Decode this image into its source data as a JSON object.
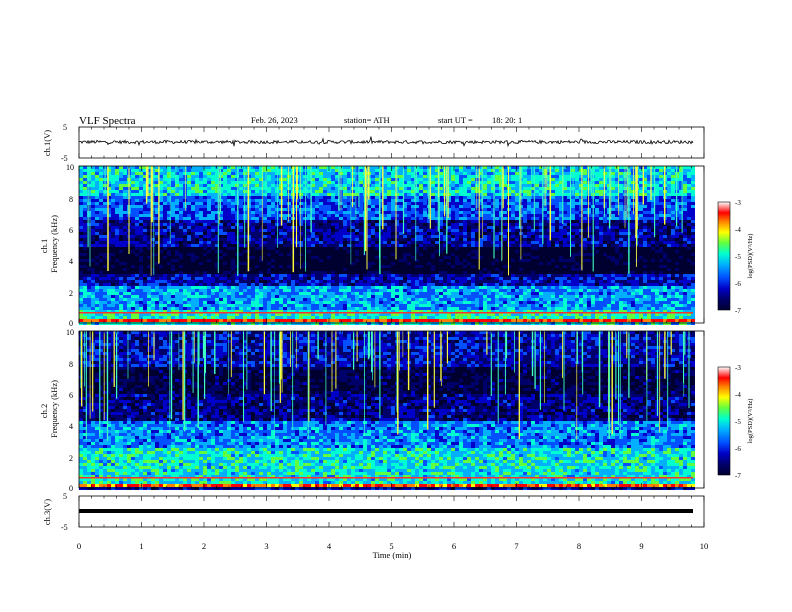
{
  "header": {
    "title": "VLF  Spectra",
    "date": "Feb. 26, 2023",
    "station": "station= ATH",
    "start_label": "start  UT  =",
    "start_time": "18: 20: 1"
  },
  "colors": {
    "spectrogram_scale": [
      "#000030",
      "#00006a",
      "#0000c8",
      "#0050ff",
      "#00b0ff",
      "#00ffd0",
      "#60ff40",
      "#ffff00",
      "#ff8000",
      "#ff0000",
      "#ffffff"
    ],
    "trace": "#000000"
  },
  "colorbar": {
    "label": "log(PSD)(V²/Hz)",
    "ticks": [
      "-3",
      "-4",
      "-5",
      "-6",
      "-7"
    ],
    "range": [
      -7,
      -3
    ]
  },
  "chart_data": [
    {
      "type": "line",
      "panel": "ch1-waveform",
      "ylabel": "ch.1(V)",
      "yticks": [
        "5",
        "-5"
      ],
      "ylim": [
        -5,
        5
      ],
      "xlim": [
        0,
        10
      ],
      "description_values": "noisy waveform centered near 0 V with amplitude about ±1 V and spikes up to ~3 V",
      "baseline": 0
    },
    {
      "type": "heatmap",
      "panel": "ch1-spectrogram",
      "ylabel": "ch.1",
      "ylabel2": "Frequency  (kHz)",
      "yticks": [
        "0",
        "2",
        "4",
        "6",
        "8",
        "10"
      ],
      "ylim": [
        0,
        10
      ],
      "xlim": [
        0,
        9.8
      ],
      "bands": [
        {
          "from": 0.0,
          "to": 0.3,
          "level": -3.2
        },
        {
          "from": 0.3,
          "to": 0.9,
          "level": -4.8
        },
        {
          "from": 0.9,
          "to": 2.4,
          "level": -5.3
        },
        {
          "from": 2.4,
          "to": 3.2,
          "level": -6.1
        },
        {
          "from": 3.2,
          "to": 4.8,
          "level": -6.9
        },
        {
          "from": 4.8,
          "to": 6.5,
          "level": -6.2
        },
        {
          "from": 6.5,
          "to": 8.0,
          "level": -5.6
        },
        {
          "from": 8.0,
          "to": 10.0,
          "level": -5.0
        }
      ]
    },
    {
      "type": "heatmap",
      "panel": "ch2-spectrogram",
      "ylabel": "ch.2",
      "ylabel2": "Frequency  (kHz)",
      "yticks": [
        "0",
        "2",
        "4",
        "6",
        "8",
        "10"
      ],
      "ylim": [
        0,
        10
      ],
      "xlim": [
        0,
        9.8
      ],
      "bands": [
        {
          "from": 0.0,
          "to": 0.3,
          "level": -3.5
        },
        {
          "from": 0.3,
          "to": 2.6,
          "level": -4.9
        },
        {
          "from": 2.6,
          "to": 4.2,
          "level": -5.4
        },
        {
          "from": 4.2,
          "to": 6.0,
          "level": -6.3
        },
        {
          "from": 6.0,
          "to": 7.8,
          "level": -6.7
        },
        {
          "from": 7.8,
          "to": 10.0,
          "level": -6.1
        }
      ]
    },
    {
      "type": "line",
      "panel": "ch3-waveform",
      "ylabel": "ch.3(V)",
      "yticks": [
        "5",
        "-5"
      ],
      "ylim": [
        -5,
        5
      ],
      "xlim": [
        0,
        10
      ],
      "baseline": -2.5
    }
  ],
  "xaxis": {
    "label": "Time  (min)",
    "ticks": [
      "0",
      "1",
      "2",
      "3",
      "4",
      "5",
      "6",
      "7",
      "8",
      "9",
      "10"
    ]
  }
}
